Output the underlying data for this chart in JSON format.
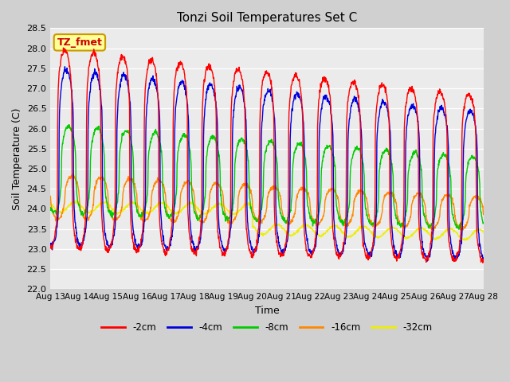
{
  "title": "Tonzi Soil Temperatures Set C",
  "xlabel": "Time",
  "ylabel": "Soil Temperature (C)",
  "ylim": [
    22.0,
    28.5
  ],
  "yticks": [
    22.0,
    22.5,
    23.0,
    23.5,
    24.0,
    24.5,
    25.0,
    25.5,
    26.0,
    26.5,
    27.0,
    27.5,
    28.0,
    28.5
  ],
  "annotation_text": "TZ_fmet",
  "annotation_bg": "#ffff99",
  "annotation_border": "#cc9900",
  "annotation_text_color": "#cc0000",
  "fig_bg_color": "#d0d0d0",
  "plot_bg_color": "#ebebeb",
  "grid_color": "#ffffff",
  "series": [
    {
      "label": "-2cm",
      "color": "#ff0000"
    },
    {
      "label": "-4cm",
      "color": "#0000dd"
    },
    {
      "label": "-8cm",
      "color": "#00cc00"
    },
    {
      "label": "-16cm",
      "color": "#ff8800"
    },
    {
      "label": "-32cm",
      "color": "#eeee00"
    }
  ],
  "x_tick_labels": [
    "Aug 13",
    "Aug 14",
    "Aug 15",
    "Aug 16",
    "Aug 17",
    "Aug 18",
    "Aug 19",
    "Aug 20",
    "Aug 21",
    "Aug 22",
    "Aug 23",
    "Aug 24",
    "Aug 25",
    "Aug 26",
    "Aug 27",
    "Aug 28"
  ],
  "n_days": 15,
  "pts_per_day": 96
}
